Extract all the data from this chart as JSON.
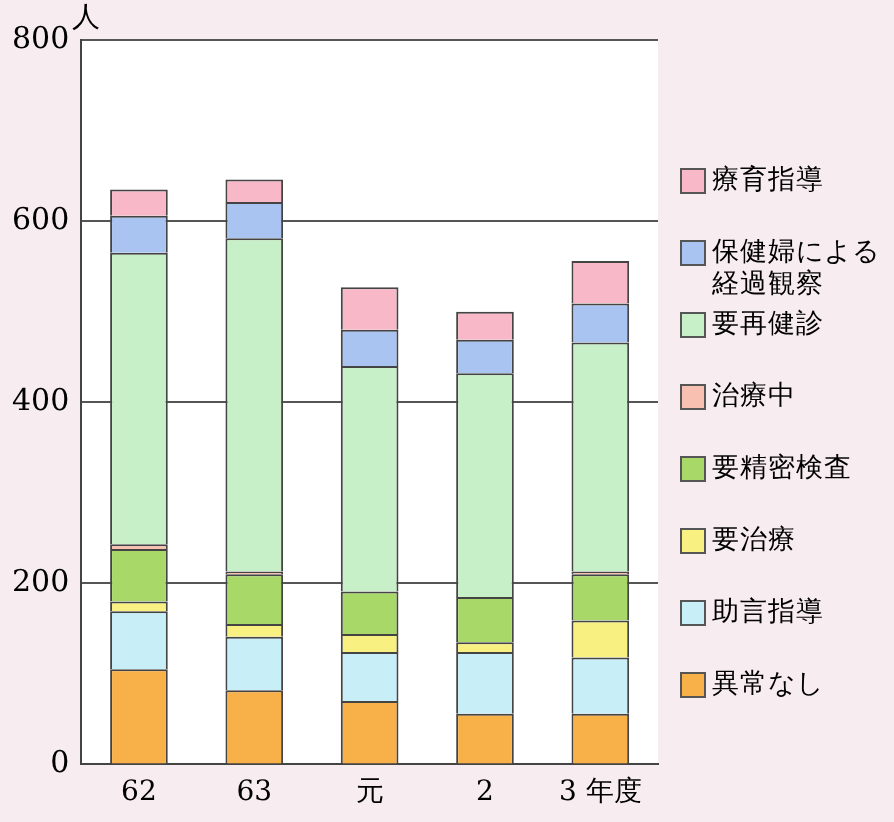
{
  "chart_data": {
    "type": "bar",
    "stacked": true,
    "ylabel": "人",
    "categories": [
      "62",
      "63",
      "元",
      "2",
      "3 年度"
    ],
    "series": [
      {
        "name": "異常なし",
        "color": "#f8b048",
        "values": [
          105,
          82,
          70,
          56,
          56
        ]
      },
      {
        "name": "助言指導",
        "color": "#c8eef8",
        "values": [
          64,
          59,
          54,
          68,
          62
        ]
      },
      {
        "name": "要治療",
        "color": "#f8f080",
        "values": [
          11,
          14,
          20,
          11,
          41
        ]
      },
      {
        "name": "要精密検査",
        "color": "#a8d868",
        "values": [
          58,
          55,
          47,
          50,
          51
        ]
      },
      {
        "name": "治療中",
        "color": "#f8c0b0",
        "values": [
          5,
          3,
          null,
          null,
          3
        ]
      },
      {
        "name": "要再健診",
        "color": "#c8f0c8",
        "values": [
          322,
          368,
          249,
          247,
          253
        ]
      },
      {
        "name": "保健婦による経過観察",
        "color": "#a9c4f0",
        "values": [
          41,
          40,
          40,
          37,
          43
        ]
      },
      {
        "name": "療育指導",
        "color": "#f9b8c8",
        "values": [
          29,
          25,
          47,
          31,
          47
        ]
      }
    ],
    "ylim": [
      0,
      800
    ],
    "yticks": [
      0,
      200,
      400,
      600,
      800
    ],
    "grid": "y",
    "legend": "right"
  }
}
